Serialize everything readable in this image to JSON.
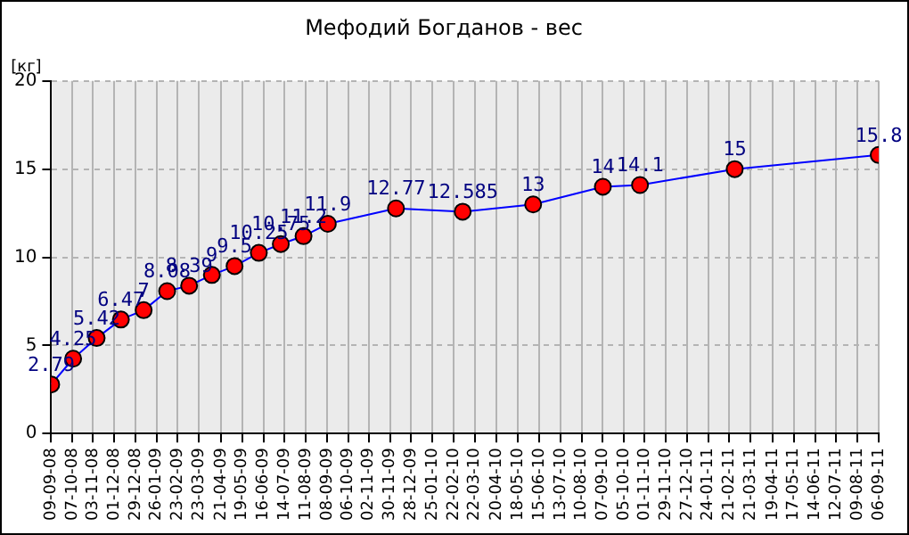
{
  "chart_data": {
    "type": "line",
    "title": "Мефодий Богданов - вес",
    "ylabel": "[кг]",
    "x": [
      "2008-09-09",
      "2008-10-08",
      "2008-11-08",
      "2008-12-10",
      "2009-01-09",
      "2009-02-09",
      "2009-03-10",
      "2009-04-09",
      "2009-05-09",
      "2009-06-10",
      "2009-07-09",
      "2009-08-08",
      "2009-09-09",
      "2009-12-08",
      "2010-03-06",
      "2010-06-07",
      "2010-09-07",
      "2010-10-26",
      "2011-02-28",
      "2011-09-06"
    ],
    "series": [
      {
        "color": "#0000ff",
        "values": [
          2.79,
          4.25,
          5.42,
          6.47,
          7,
          8.08,
          8.39,
          9,
          9.5,
          10.25,
          10.75,
          11.2,
          11.9,
          12.77,
          12.585,
          13,
          14,
          14.1,
          15,
          15.8
        ]
      }
    ],
    "data_labels": true,
    "marker": "circle",
    "line_style": "solid",
    "grid": true,
    "legend": false,
    "ylim": [
      0,
      20
    ],
    "yticks": [
      0,
      5,
      10,
      15,
      20
    ],
    "xlim": [
      "2008-09-09",
      "2011-09-06"
    ],
    "xticks": [
      {
        "value": "2008-09-09",
        "label": "09-09-08"
      },
      {
        "value": "2008-10-07",
        "label": "07-10-08"
      },
      {
        "value": "2008-11-03",
        "label": "03-11-08"
      },
      {
        "value": "2008-12-01",
        "label": "01-12-08"
      },
      {
        "value": "2008-12-29",
        "label": "29-12-08"
      },
      {
        "value": "2009-01-26",
        "label": "26-01-09"
      },
      {
        "value": "2009-02-23",
        "label": "23-02-09"
      },
      {
        "value": "2009-03-23",
        "label": "23-03-09"
      },
      {
        "value": "2009-04-21",
        "label": "21-04-09"
      },
      {
        "value": "2009-05-19",
        "label": "19-05-09"
      },
      {
        "value": "2009-06-16",
        "label": "16-06-09"
      },
      {
        "value": "2009-07-14",
        "label": "14-07-09"
      },
      {
        "value": "2009-08-11",
        "label": "11-08-09"
      },
      {
        "value": "2009-09-08",
        "label": "08-09-09"
      },
      {
        "value": "2009-10-06",
        "label": "06-10-09"
      },
      {
        "value": "2009-11-02",
        "label": "02-11-09"
      },
      {
        "value": "2009-11-30",
        "label": "30-11-09"
      },
      {
        "value": "2009-12-28",
        "label": "28-12-09"
      },
      {
        "value": "2010-01-25",
        "label": "25-01-10"
      },
      {
        "value": "2010-02-22",
        "label": "22-02-10"
      },
      {
        "value": "2010-03-22",
        "label": "22-03-10"
      },
      {
        "value": "2010-04-20",
        "label": "20-04-10"
      },
      {
        "value": "2010-05-18",
        "label": "18-05-10"
      },
      {
        "value": "2010-06-15",
        "label": "15-06-10"
      },
      {
        "value": "2010-07-13",
        "label": "13-07-10"
      },
      {
        "value": "2010-08-10",
        "label": "10-08-10"
      },
      {
        "value": "2010-09-07",
        "label": "07-09-10"
      },
      {
        "value": "2010-10-05",
        "label": "05-10-10"
      },
      {
        "value": "2010-11-01",
        "label": "01-11-10"
      },
      {
        "value": "2010-11-29",
        "label": "29-11-10"
      },
      {
        "value": "2010-12-27",
        "label": "27-12-10"
      },
      {
        "value": "2011-01-24",
        "label": "24-01-11"
      },
      {
        "value": "2011-02-21",
        "label": "21-02-11"
      },
      {
        "value": "2011-03-21",
        "label": "21-03-11"
      },
      {
        "value": "2011-04-19",
        "label": "19-04-11"
      },
      {
        "value": "2011-05-17",
        "label": "17-05-11"
      },
      {
        "value": "2011-06-14",
        "label": "14-06-11"
      },
      {
        "value": "2011-07-12",
        "label": "12-07-11"
      },
      {
        "value": "2011-08-09",
        "label": "09-08-11"
      },
      {
        "value": "2011-09-06",
        "label": "06-09-11"
      }
    ]
  }
}
